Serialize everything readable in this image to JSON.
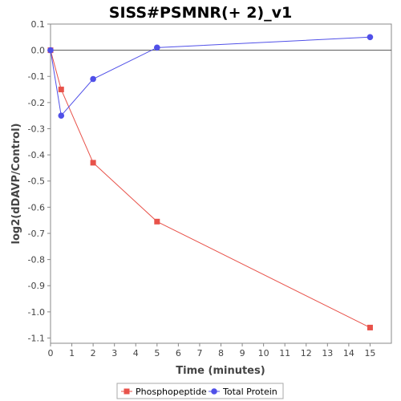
{
  "chart_data": {
    "type": "line",
    "title": "SISS#PSMNR(+ 2)_v1",
    "xlabel": "Time (minutes)",
    "ylabel": "log2(dDAVP/Control)",
    "xlim": [
      0,
      16
    ],
    "ylim": [
      -1.12,
      0.1
    ],
    "x_ticks": [
      0,
      1,
      2,
      3,
      4,
      5,
      6,
      7,
      8,
      9,
      10,
      11,
      12,
      13,
      14,
      15
    ],
    "y_ticks": [
      0.1,
      0.0,
      -0.1,
      -0.2,
      -0.3,
      -0.4,
      -0.5,
      -0.6,
      -0.7,
      -0.8,
      -0.9,
      -1.0,
      -1.1
    ],
    "y_tick_labels": [
      "0.1",
      "0.0",
      "-0.1",
      "-0.2",
      "-0.3",
      "-0.4",
      "-0.5",
      "-0.6",
      "-0.7",
      "-0.8",
      "-0.9",
      "-1.0",
      "-1.1"
    ],
    "grid": false,
    "zero_line": true,
    "legend_position": "bottom",
    "series": [
      {
        "name": "Phosphopeptide",
        "marker": "square",
        "color": "#e8524a",
        "x": [
          0,
          0.5,
          2,
          5,
          15
        ],
        "y": [
          0.0,
          -0.15,
          -0.43,
          -0.655,
          -1.06
        ]
      },
      {
        "name": "Total Protein",
        "marker": "circle",
        "color": "#5050e8",
        "x": [
          0,
          0.5,
          2,
          5,
          15
        ],
        "y": [
          0.0,
          -0.25,
          -0.11,
          0.01,
          0.05
        ]
      }
    ]
  }
}
